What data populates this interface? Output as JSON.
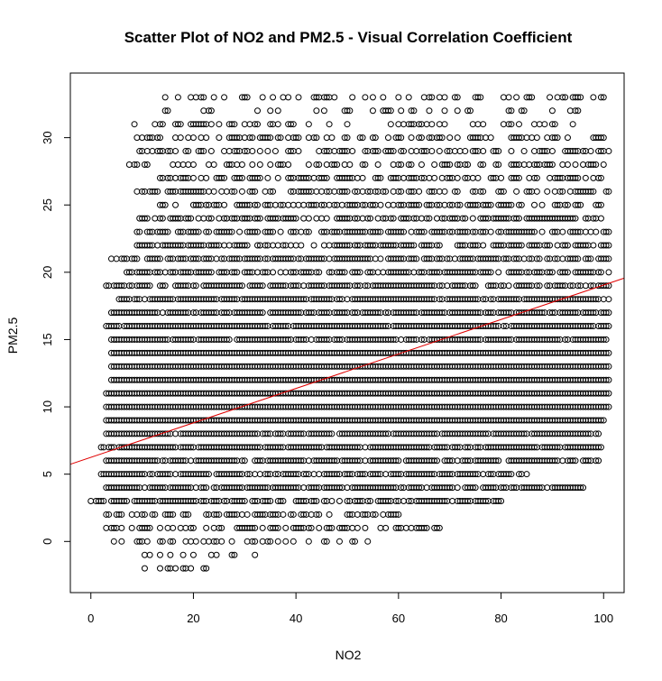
{
  "chart_data": {
    "type": "scatter",
    "title": "Scatter Plot of NO2 and PM2.5 - Visual Correlation Coefficient",
    "xlabel": "NO2",
    "ylabel": "PM2.5",
    "xlim": [
      -4,
      104
    ],
    "ylim": [
      -3.8,
      34.8
    ],
    "x_ticks": [
      0,
      20,
      40,
      60,
      80,
      100
    ],
    "y_ticks": [
      0,
      5,
      10,
      15,
      20,
      25,
      30
    ],
    "grid": false,
    "legend": "none",
    "point_color": "#000000",
    "regression_line": {
      "color": "#e00000",
      "intercept": 6.25,
      "slope": 0.128
    },
    "y_levels": [
      -2,
      -1,
      0,
      1,
      2,
      3,
      4,
      5,
      6,
      7,
      8,
      9,
      10,
      11,
      12,
      13,
      14,
      15,
      16,
      17,
      18,
      19,
      20,
      21,
      22,
      23,
      24,
      25,
      26,
      27,
      28,
      29,
      30,
      31,
      32,
      33
    ],
    "row_ranges": [
      {
        "y": 33,
        "x_min": 14,
        "x_max": 100,
        "density": 0.35
      },
      {
        "y": 32,
        "x_min": 13,
        "x_max": 96,
        "density": 0.25
      },
      {
        "y": 31,
        "x_min": 8,
        "x_max": 98,
        "density": 0.3
      },
      {
        "y": 30,
        "x_min": 9,
        "x_max": 100,
        "density": 0.5
      },
      {
        "y": 29,
        "x_min": 9,
        "x_max": 101,
        "density": 0.45
      },
      {
        "y": 28,
        "x_min": 7,
        "x_max": 100,
        "density": 0.45
      },
      {
        "y": 27,
        "x_min": 12,
        "x_max": 100,
        "density": 0.55
      },
      {
        "y": 26,
        "x_min": 9,
        "x_max": 101,
        "density": 0.55
      },
      {
        "y": 25,
        "x_min": 13,
        "x_max": 100,
        "density": 0.6
      },
      {
        "y": 24,
        "x_min": 8,
        "x_max": 101,
        "density": 0.65
      },
      {
        "y": 23,
        "x_min": 9,
        "x_max": 101,
        "density": 0.7
      },
      {
        "y": 22,
        "x_min": 9,
        "x_max": 101,
        "density": 0.7
      },
      {
        "y": 21,
        "x_min": 4,
        "x_max": 101,
        "density": 0.8
      },
      {
        "y": 20,
        "x_min": 7,
        "x_max": 101,
        "density": 0.8
      },
      {
        "y": 19,
        "x_min": 3,
        "x_max": 101,
        "density": 0.85
      },
      {
        "y": 18,
        "x_min": 5,
        "x_max": 101,
        "density": 0.9
      },
      {
        "y": 17,
        "x_min": 4,
        "x_max": 101,
        "density": 0.9
      },
      {
        "y": 16,
        "x_min": 3,
        "x_max": 101,
        "density": 0.95
      },
      {
        "y": 15,
        "x_min": 4,
        "x_max": 101,
        "density": 0.95
      },
      {
        "y": 14,
        "x_min": 4,
        "x_max": 101,
        "density": 1.0
      },
      {
        "y": 13,
        "x_min": 4,
        "x_max": 101,
        "density": 1.0
      },
      {
        "y": 12,
        "x_min": 4,
        "x_max": 101,
        "density": 1.0
      },
      {
        "y": 11,
        "x_min": 3,
        "x_max": 101,
        "density": 1.0
      },
      {
        "y": 10,
        "x_min": 3,
        "x_max": 101,
        "density": 1.0
      },
      {
        "y": 9,
        "x_min": 3,
        "x_max": 100,
        "density": 1.0
      },
      {
        "y": 8,
        "x_min": 3,
        "x_max": 99,
        "density": 0.95
      },
      {
        "y": 7,
        "x_min": 2,
        "x_max": 100,
        "density": 0.9
      },
      {
        "y": 6,
        "x_min": 3,
        "x_max": 99,
        "density": 0.85
      },
      {
        "y": 5,
        "x_min": 2,
        "x_max": 85,
        "density": 0.85
      },
      {
        "y": 4,
        "x_min": 3,
        "x_max": 96,
        "density": 0.8
      },
      {
        "y": 3,
        "x_min": 0,
        "x_max": 80,
        "density": 0.8
      },
      {
        "y": 2,
        "x_min": 3,
        "x_max": 60,
        "density": 0.6
      },
      {
        "y": 1,
        "x_min": 3,
        "x_max": 68,
        "density": 0.45
      },
      {
        "y": 0,
        "x_min": 3,
        "x_max": 55,
        "density": 0.3
      },
      {
        "y": -1,
        "x_min": 5,
        "x_max": 35,
        "density": 0.25
      },
      {
        "y": -2,
        "x_min": 9,
        "x_max": 23,
        "density": 0.3
      }
    ]
  }
}
